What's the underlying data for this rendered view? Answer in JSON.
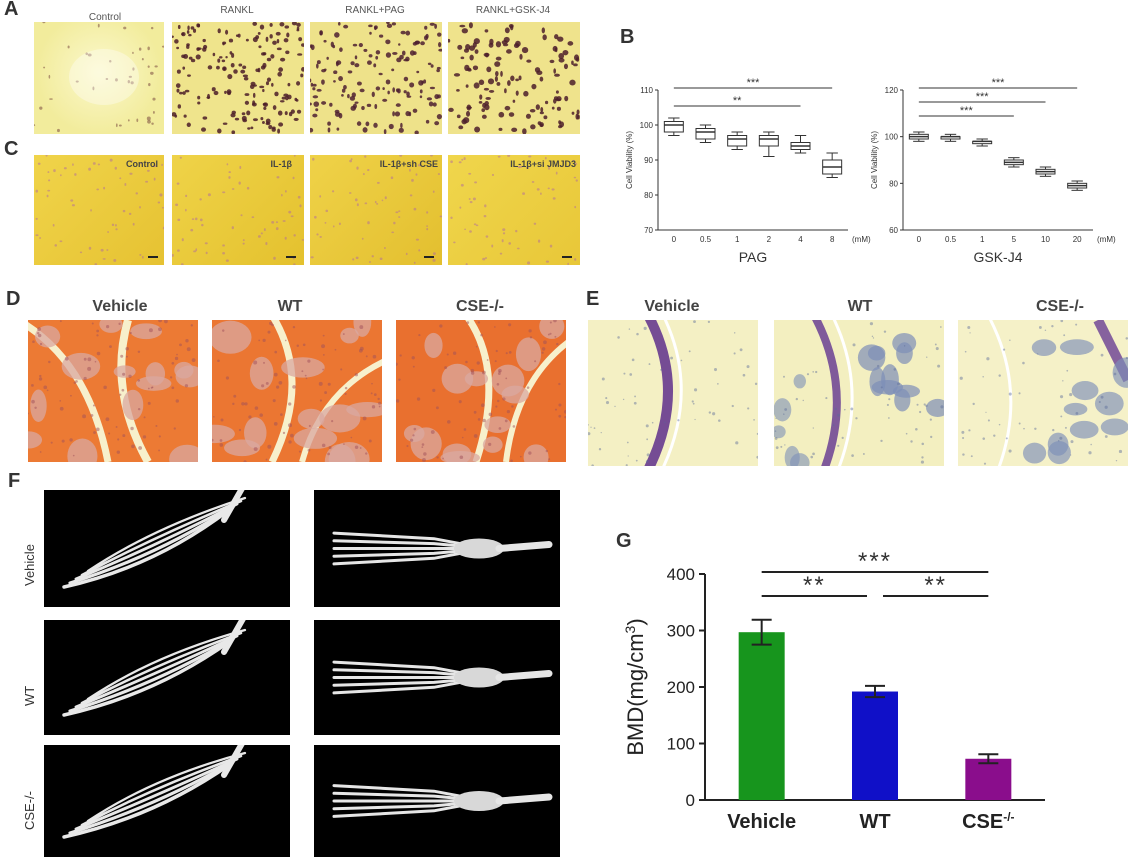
{
  "panels": {
    "A": {
      "letter": "A",
      "labels": [
        "Control",
        "RANKL",
        "RANKL+PAG",
        "RANKL+GSK-J4"
      ]
    },
    "B": {
      "letter": "B"
    },
    "C": {
      "letter": "C",
      "labels": [
        "Control",
        "IL-1β",
        "IL-1β+sh CSE",
        "IL-1β+si JMJD3"
      ]
    },
    "D": {
      "letter": "D",
      "labels": [
        "Vehicle",
        "WT",
        "CSE-/-"
      ]
    },
    "E": {
      "letter": "E",
      "labels": [
        "Vehicle",
        "WT",
        "CSE-/-"
      ]
    },
    "F": {
      "letter": "F",
      "row_labels": [
        "Vehicle",
        "WT",
        "CSE-/-"
      ]
    },
    "G": {
      "letter": "G"
    }
  },
  "colors": {
    "vehicle_bar": "#17951d",
    "wt_bar": "#1010c8",
    "cse_bar": "#8a0d8c",
    "trap_bg": "#f1e79a",
    "trap_cell": "#5a2430",
    "hae_bg": "#e8c93a",
    "safranin": "#e86a2c",
    "toluidine": "#6a3f93"
  },
  "chart_data": [
    {
      "type": "box",
      "panel": "B-left",
      "xlabel": "PAG",
      "ylabel": "Cell Viability (%)",
      "unit": "(mM)",
      "categories": [
        "0",
        "0.5",
        "1",
        "2",
        "4",
        "8"
      ],
      "ylim": [
        70,
        110
      ],
      "yticks": [
        70,
        80,
        90,
        100,
        110
      ],
      "boxes": [
        {
          "min": 97,
          "q1": 98,
          "median": 100,
          "q3": 101,
          "max": 102
        },
        {
          "min": 95,
          "q1": 96,
          "median": 98,
          "q3": 99,
          "max": 100
        },
        {
          "min": 93,
          "q1": 94,
          "median": 96,
          "q3": 97,
          "max": 98
        },
        {
          "min": 91,
          "q1": 94,
          "median": 96,
          "q3": 97,
          "max": 98
        },
        {
          "min": 92,
          "q1": 93,
          "median": 94,
          "q3": 95,
          "max": 97
        },
        {
          "min": 85,
          "q1": 86,
          "median": 88,
          "q3": 90,
          "max": 92
        }
      ],
      "significance": [
        {
          "from": "0",
          "to": "4",
          "label": "**"
        },
        {
          "from": "0",
          "to": "8",
          "label": "***"
        }
      ]
    },
    {
      "type": "box",
      "panel": "B-right",
      "xlabel": "GSK-J4",
      "ylabel": "Cell Viability (%)",
      "unit": "(mM)",
      "categories": [
        "0",
        "0.5",
        "1",
        "5",
        "10",
        "20"
      ],
      "ylim": [
        60,
        120
      ],
      "yticks": [
        60,
        80,
        100,
        120
      ],
      "boxes": [
        {
          "min": 98,
          "q1": 99,
          "median": 100,
          "q3": 101,
          "max": 102
        },
        {
          "min": 98,
          "q1": 99,
          "median": 100,
          "q3": 100,
          "max": 101
        },
        {
          "min": 96,
          "q1": 97,
          "median": 98,
          "q3": 98,
          "max": 99
        },
        {
          "min": 87,
          "q1": 88,
          "median": 89,
          "q3": 90,
          "max": 91
        },
        {
          "min": 83,
          "q1": 84,
          "median": 85,
          "q3": 86,
          "max": 87
        },
        {
          "min": 77,
          "q1": 78,
          "median": 79,
          "q3": 80,
          "max": 81
        }
      ],
      "significance": [
        {
          "from": "0",
          "to": "5",
          "label": "***"
        },
        {
          "from": "0",
          "to": "10",
          "label": "***"
        },
        {
          "from": "0",
          "to": "20",
          "label": "***"
        }
      ]
    },
    {
      "type": "bar",
      "panel": "G",
      "categories": [
        "Vehicle",
        "WT",
        "CSE"
      ],
      "category_superscript": [
        "",
        "",
        "-/-"
      ],
      "values": [
        297,
        192,
        73
      ],
      "errors": [
        22,
        10,
        8
      ],
      "ylabel": "BMD(mg/cm",
      "ylabel_sup": "3",
      "ylabel_end": ")",
      "ylim": [
        0,
        400
      ],
      "yticks": [
        0,
        100,
        200,
        300,
        400
      ],
      "significance": [
        {
          "from": "Vehicle",
          "to": "WT",
          "label": "**"
        },
        {
          "from": "WT",
          "to": "CSE",
          "label": "**"
        },
        {
          "from": "Vehicle",
          "to": "CSE",
          "label": "***"
        }
      ]
    }
  ]
}
